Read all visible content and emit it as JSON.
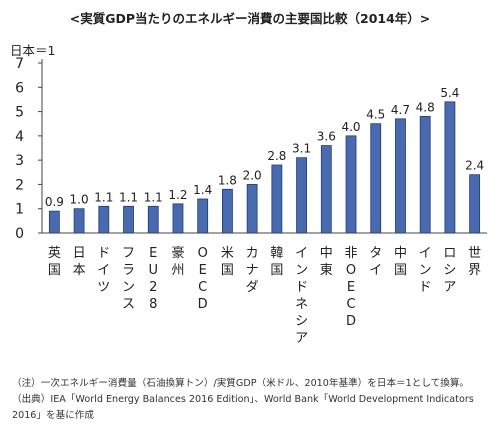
{
  "chart_data": {
    "type": "bar",
    "title": "<実質GDP当たりのエネルギー消費の主要国比較（2014年）>",
    "ylabel": "日本＝1",
    "xlabel": "",
    "ylim": [
      0,
      7
    ],
    "yticks": [
      0,
      1,
      2,
      3,
      4,
      5,
      6,
      7
    ],
    "grid": false,
    "bar_color": "#4a6ab0",
    "bar_border_color": "#1f3a7a",
    "categories": [
      "英国",
      "日本",
      "ドイツ",
      "フランス",
      "EU28",
      "豪州",
      "OECD",
      "米国",
      "カナダ",
      "韓国",
      "インドネシア",
      "中東",
      "非OECD",
      "タイ",
      "中国",
      "インド",
      "ロシア",
      "世界"
    ],
    "values": [
      0.9,
      1.0,
      1.1,
      1.1,
      1.1,
      1.2,
      1.4,
      1.8,
      2.0,
      2.8,
      3.1,
      3.6,
      4.0,
      4.5,
      4.7,
      4.8,
      5.4,
      2.4
    ],
    "value_labels": [
      "0.9",
      "1.0",
      "1.1",
      "1.1",
      "1.1",
      "1.2",
      "1.4",
      "1.8",
      "2.0",
      "2.8",
      "3.1",
      "3.6",
      "4.0",
      "4.5",
      "4.7",
      "4.8",
      "5.4",
      "2.4"
    ]
  },
  "notes": {
    "line1": "（注）一次エネルギー消費量（石油換算トン）/実質GDP（米ドル、2010年基準）を日本＝1として換算。",
    "line2": "（出典）IEA「World Energy Balances 2016 Edition」、World Bank「World Development Indicators",
    "line3": "2016」を基に作成"
  }
}
